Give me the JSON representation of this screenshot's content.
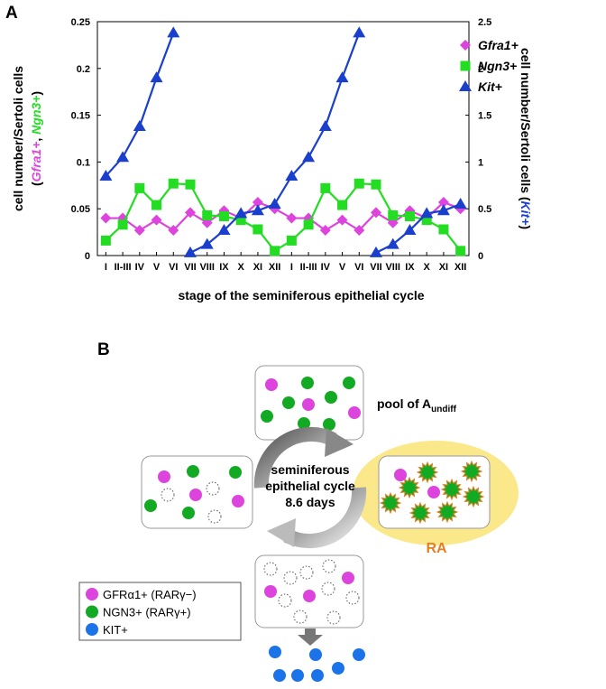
{
  "chart_data": {
    "type": "line",
    "panel_label": "A",
    "xlabel": "stage of the seminiferous epithelial cycle",
    "ylabel": {
      "line1": "cell number/Sertoli cells",
      "line2": [
        "(",
        "Gfra1+",
        ", ",
        "Ngn3+",
        ")"
      ]
    },
    "y2label": [
      "cell number/Sertoli cells (",
      "Kit+",
      ")"
    ],
    "categories": [
      "I",
      "II-III",
      "IV",
      "V",
      "VI",
      "VII",
      "VIII",
      "IX",
      "X",
      "XI",
      "XII",
      "I",
      "II-III",
      "IV",
      "V",
      "VI",
      "VII",
      "VIII",
      "IX",
      "X",
      "XI",
      "XII"
    ],
    "series": [
      {
        "name": "Gfra1+",
        "color": "#dd44dd",
        "marker": "diamond",
        "values": [
          0.04,
          0.04,
          0.027,
          0.038,
          0.027,
          0.046,
          0.035,
          0.048,
          0.04,
          0.057,
          0.05,
          0.04,
          0.04,
          0.027,
          0.038,
          0.027,
          0.046,
          0.035,
          0.048,
          0.04,
          0.057,
          0.05
        ]
      },
      {
        "name": "Ngn3+",
        "color": "#22dd22",
        "marker": "square",
        "values": [
          0.016,
          0.033,
          0.072,
          0.054,
          0.077,
          0.076,
          0.043,
          0.042,
          0.038,
          0.028,
          0.005,
          0.016,
          0.033,
          0.072,
          0.054,
          0.077,
          0.076,
          0.043,
          0.042,
          0.038,
          0.028,
          0.005
        ]
      },
      {
        "name": "Kit+",
        "color": "#1a3fcc",
        "marker": "triangle",
        "axis": "y2",
        "values": [
          0.85,
          1.05,
          1.38,
          1.9,
          2.38,
          0.03,
          0.12,
          0.27,
          0.45,
          0.48,
          0.55,
          0.85,
          1.05,
          1.38,
          1.9,
          2.38,
          0.03,
          0.12,
          0.27,
          0.45,
          0.48,
          0.55
        ]
      }
    ],
    "ylim": [
      0,
      0.25
    ],
    "yticks": [
      0,
      0.05,
      0.1,
      0.15,
      0.2,
      0.25
    ],
    "y2lim": [
      0,
      2.5
    ],
    "y2ticks": [
      0,
      0.5,
      1,
      1.5,
      2,
      2.5
    ],
    "legend": "top-right"
  },
  "diagram": {
    "panel_label": "B",
    "pool_label": [
      "pool of A",
      "undiff"
    ],
    "cycle_label": [
      "seminiferous",
      "epithelial cycle",
      "8.6 days"
    ],
    "ra_label": "RA",
    "legend": [
      "GFRα1+ (RARγ−)",
      "NGN3+ (RARγ+)",
      "KIT+"
    ]
  }
}
